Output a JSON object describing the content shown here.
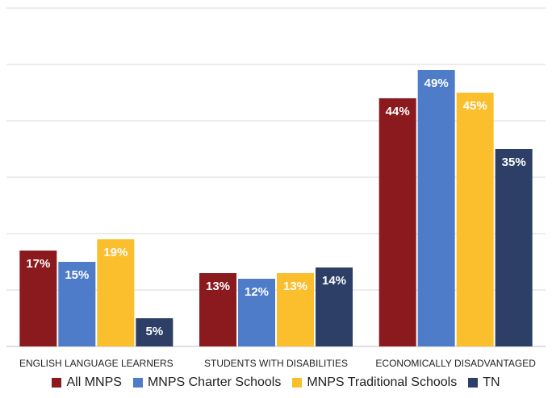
{
  "chart_data": {
    "type": "bar",
    "categories": [
      "ENGLISH LANGUAGE LEARNERS",
      "STUDENTS WITH DISABILITIES",
      "ECONOMICALLY DISADVANTAGED"
    ],
    "series": [
      {
        "name": "All MNPS",
        "values": [
          17,
          13,
          44
        ],
        "labels": [
          "17%",
          "13%",
          "44%"
        ],
        "color": "#8b1a1f"
      },
      {
        "name": "MNPS Charter Schools",
        "values": [
          15,
          12,
          49
        ],
        "labels": [
          "15%",
          "12%",
          "49%"
        ],
        "color": "#4e7cc9"
      },
      {
        "name": "MNPS Traditional Schools",
        "values": [
          19,
          13,
          45
        ],
        "labels": [
          "19%",
          "13%",
          "45%"
        ],
        "color": "#fbbf2e"
      },
      {
        "name": "TN",
        "values": [
          5,
          14,
          35
        ],
        "labels": [
          "5%",
          "14%",
          "35%"
        ],
        "color": "#2d3f66"
      }
    ],
    "ylim": [
      0,
      60
    ],
    "grid": true,
    "legend_position": "bottom",
    "title": "",
    "xlabel": "",
    "ylabel": ""
  }
}
